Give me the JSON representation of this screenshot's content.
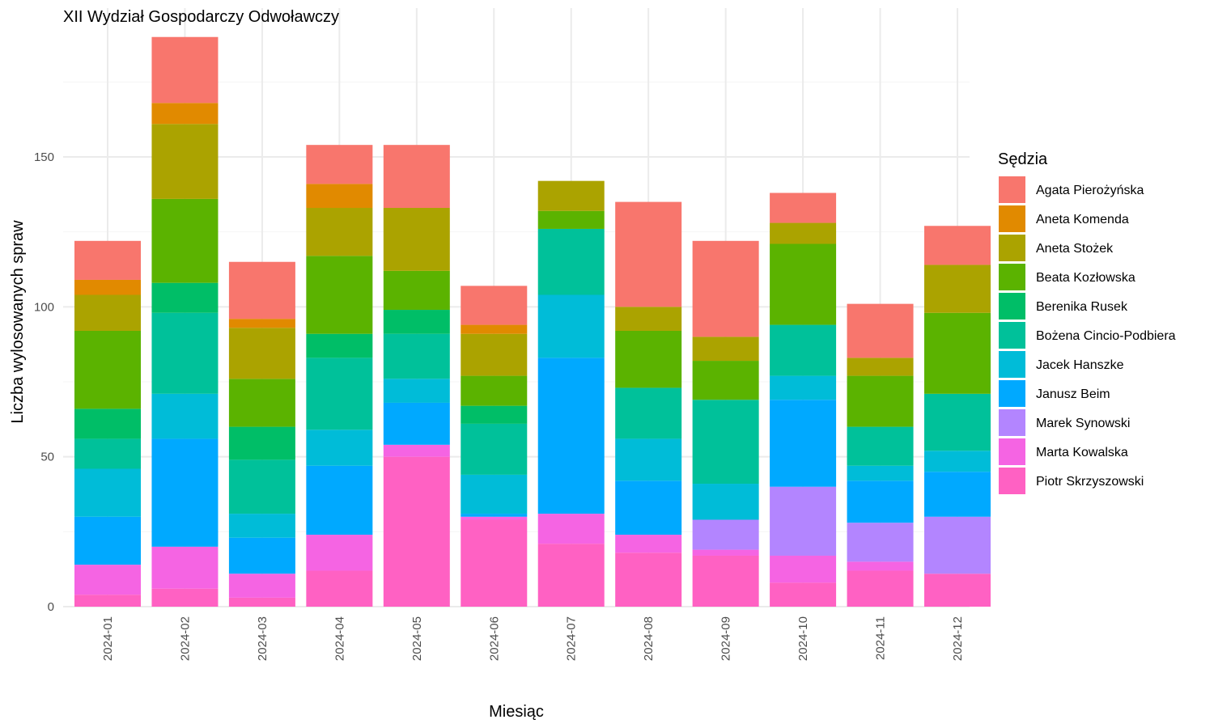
{
  "chart_data": {
    "type": "bar",
    "stacked": true,
    "title": "XII Wydział Gospodarczy Odwoławczy",
    "xlabel": "Miesiąc",
    "ylabel": "Liczba wylosowanych spraw",
    "ylim": [
      0,
      190
    ],
    "yticks": [
      0,
      50,
      100,
      150
    ],
    "grid": true,
    "legend_title": "Sędzia",
    "legend_position": "right",
    "categories": [
      "2024-01",
      "2024-02",
      "2024-03",
      "2024-04",
      "2024-05",
      "2024-06",
      "2024-07",
      "2024-08",
      "2024-09",
      "2024-10",
      "2024-11",
      "2024-12"
    ],
    "series": [
      {
        "name": "Piotr Skrzyszowski",
        "color": "#FF61C3",
        "values": [
          4,
          6,
          3,
          12,
          50,
          29,
          21,
          18,
          17,
          8,
          12,
          11
        ]
      },
      {
        "name": "Marta Kowalska",
        "color": "#F564E3",
        "values": [
          10,
          14,
          8,
          12,
          4,
          1,
          10,
          6,
          2,
          9,
          3,
          0
        ]
      },
      {
        "name": "Marek Synowski",
        "color": "#B385FF",
        "values": [
          0,
          0,
          0,
          0,
          0,
          0,
          0,
          0,
          10,
          23,
          13,
          19
        ]
      },
      {
        "name": "Janusz Beim",
        "color": "#00A9FF",
        "values": [
          16,
          36,
          12,
          23,
          14,
          1,
          52,
          18,
          0,
          29,
          14,
          15
        ]
      },
      {
        "name": "Jacek Hanszke",
        "color": "#00BCD8",
        "values": [
          16,
          15,
          8,
          12,
          8,
          13,
          21,
          14,
          12,
          8,
          5,
          7
        ]
      },
      {
        "name": "Bożena Cincio-Podbiera",
        "color": "#00C19A",
        "values": [
          10,
          27,
          18,
          24,
          15,
          17,
          22,
          17,
          28,
          17,
          13,
          19
        ]
      },
      {
        "name": "Berenika Rusek",
        "color": "#00BE67",
        "values": [
          10,
          10,
          11,
          8,
          8,
          6,
          0,
          0,
          0,
          0,
          0,
          0
        ]
      },
      {
        "name": "Beata Kozłowska",
        "color": "#5BB300",
        "values": [
          26,
          28,
          16,
          26,
          13,
          10,
          6,
          19,
          13,
          27,
          17,
          27
        ]
      },
      {
        "name": "Aneta Stożek",
        "color": "#ABA300",
        "values": [
          12,
          25,
          17,
          16,
          21,
          14,
          10,
          8,
          8,
          7,
          6,
          16
        ]
      },
      {
        "name": "Aneta Komenda",
        "color": "#E18A00",
        "values": [
          5,
          7,
          3,
          8,
          0,
          3,
          0,
          0,
          0,
          0,
          0,
          0
        ]
      },
      {
        "name": "Agata Pierożyńska",
        "color": "#F8766D",
        "values": [
          13,
          22,
          19,
          13,
          21,
          13,
          0,
          35,
          32,
          10,
          18,
          13
        ]
      }
    ],
    "legend_order": [
      "Agata Pierożyńska",
      "Aneta Komenda",
      "Aneta Stożek",
      "Beata Kozłowska",
      "Berenika Rusek",
      "Bożena Cincio-Podbiera",
      "Jacek Hanszke",
      "Janusz Beim",
      "Marek Synowski",
      "Marta Kowalska",
      "Piotr Skrzyszowski"
    ]
  }
}
